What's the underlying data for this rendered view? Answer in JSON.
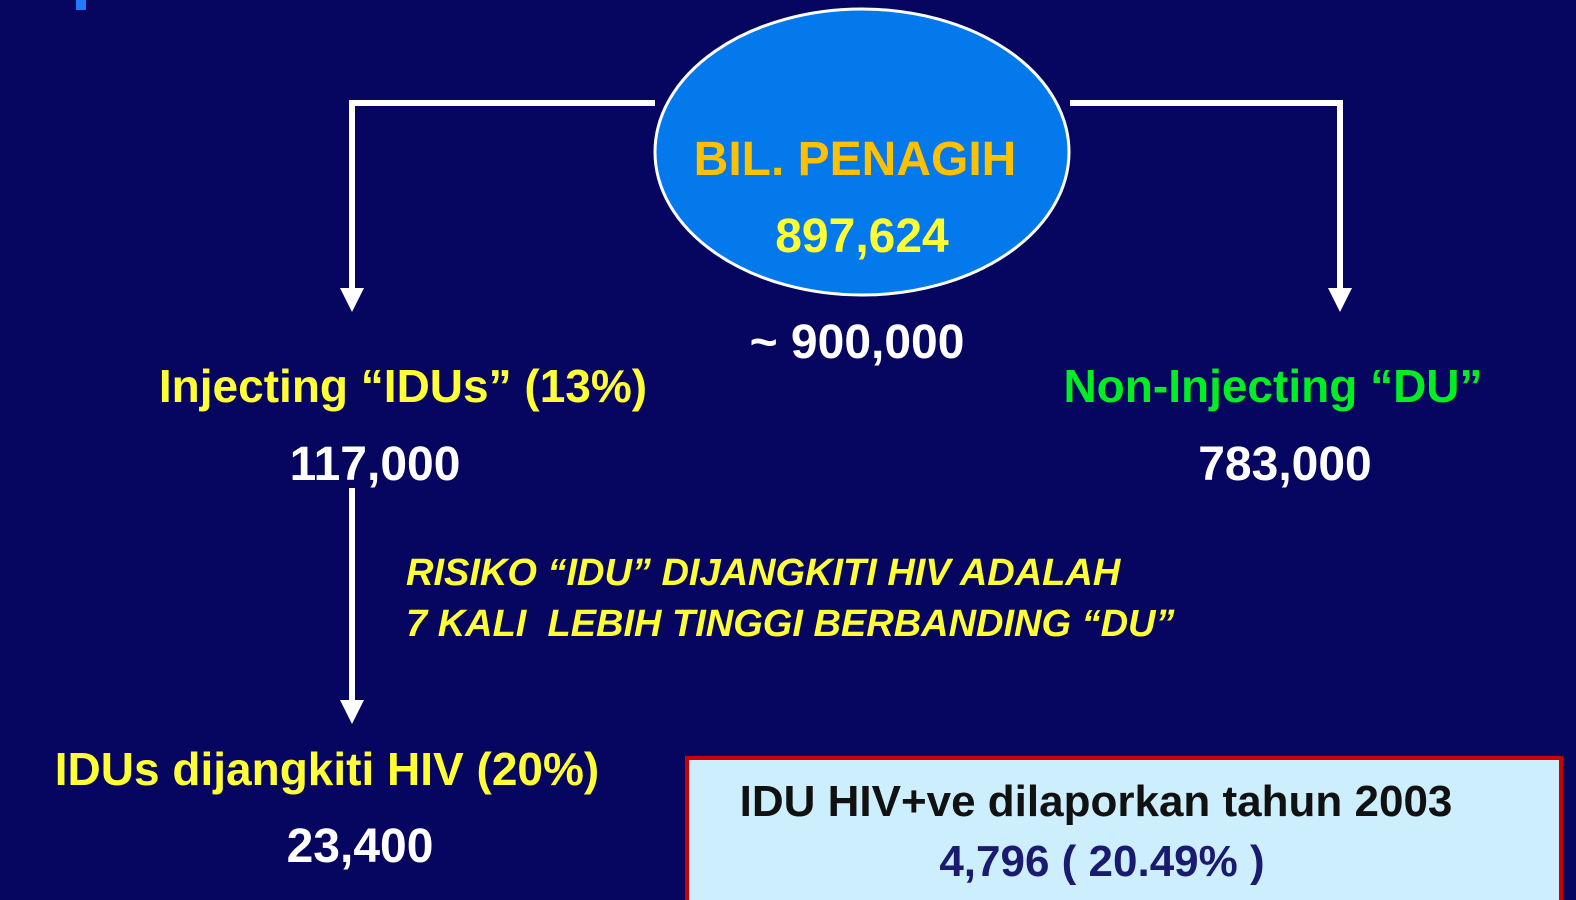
{
  "ellipse": {
    "title": "BIL. PENAGIH",
    "value": "897,624"
  },
  "approx": "~ 900,000",
  "left": {
    "label": "Injecting “IDUs” (13%)",
    "value": "117,000"
  },
  "right": {
    "label": "Non-Injecting “DU”",
    "value": "783,000"
  },
  "risk": {
    "lines": [
      "RISIKO “IDU” DIJANGKITI HIV ADALAH",
      "7 KALI  LEBIH TINGGI BERBANDING “DU”"
    ]
  },
  "bottom": {
    "label": "IDUs dijangkiti HIV (20%)",
    "value": "23,400"
  },
  "box": {
    "title": "IDU HIV+ve dilaporkan tahun 2003",
    "value": "4,796 ( 20.49% )"
  }
}
